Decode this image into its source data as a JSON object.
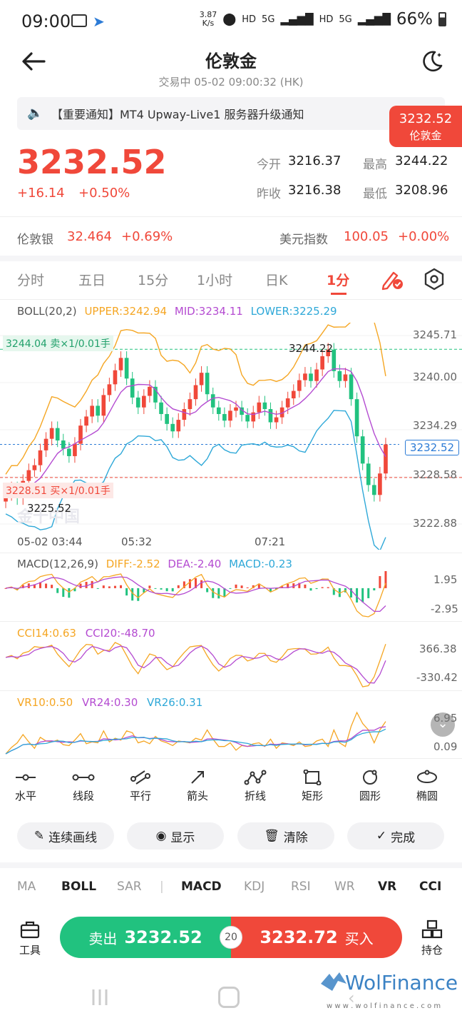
{
  "status": {
    "time": "09:00",
    "speed": "3.87",
    "speed_unit": "K/s",
    "net1": "HD",
    "net2": "5G",
    "net3": "HD",
    "net4": "5G",
    "battery": "66%"
  },
  "header": {
    "title": "伦敦金",
    "subtitle": "交易中  05-02 09:00:32 (HK)"
  },
  "notice": {
    "text": "【重要通知】MT4 Upway-Live1 服务器升级通知"
  },
  "price_tag": {
    "price": "3232.52",
    "label": "伦敦金"
  },
  "quote": {
    "price": "3232.52",
    "change": "+16.14",
    "change_pct": "+0.50%",
    "open_label": "今开",
    "open": "3216.37",
    "high_label": "最高",
    "high": "3244.22",
    "prev_label": "昨收",
    "prev": "3216.38",
    "low_label": "最低",
    "low": "3208.96"
  },
  "related": {
    "silver_label": "伦敦银",
    "silver": "32.464",
    "silver_pct": "+0.69%",
    "dxy_label": "美元指数",
    "dxy": "100.05",
    "dxy_pct": "+0.00%"
  },
  "tabs": [
    "分时",
    "五日",
    "15分",
    "1小时",
    "日K",
    "1分"
  ],
  "active_tab": "1分",
  "boll": {
    "name": "BOLL(20,2)",
    "upper": "UPPER:3242.94",
    "mid": "MID:3234.11",
    "lower": "LOWER:3225.29"
  },
  "main_chart": {
    "axis": [
      "3245.71",
      "3240.00",
      "3234.29",
      "3228.58",
      "3222.88"
    ],
    "current_label": "3232.52",
    "sell_order": "3244.04 卖×1/0.01手",
    "buy_order": "3228.51 买×1/0.01手",
    "max_label": "3244.22",
    "min_label": "3225.52",
    "times": [
      "05-02 03:44",
      "05:32",
      "07:21"
    ],
    "watermark": "金十中国"
  },
  "macd": {
    "name": "MACD(12,26,9)",
    "diff": "DIFF:-2.52",
    "dea": "DEA:-2.40",
    "macd": "MACD:-0.23",
    "axis": [
      "1.95",
      "-2.95"
    ]
  },
  "cci": {
    "c14": "CCI14:0.63",
    "c20": "CCI20:-48.70",
    "axis": [
      "366.38",
      "-330.42"
    ]
  },
  "vr": {
    "v10": "VR10:0.50",
    "v24": "VR24:0.30",
    "v26": "VR26:0.31",
    "axis": [
      "6.95",
      "0.09"
    ]
  },
  "draw_tools": [
    "水平",
    "线段",
    "平行",
    "箭头",
    "折线",
    "矩形",
    "圆形",
    "椭圆"
  ],
  "actions": {
    "continuous": "连续画线",
    "show": "显示",
    "clear": "清除",
    "done": "完成"
  },
  "indicators": [
    "MA",
    "BOLL",
    "SAR",
    "MACD",
    "KDJ",
    "RSI",
    "WR",
    "VR",
    "CCI"
  ],
  "bold_indicators": [
    "BOLL",
    "MACD",
    "VR",
    "CCI"
  ],
  "trade": {
    "tools": "工具",
    "sell_label": "卖出",
    "sell_price": "3232.52",
    "spread": "20",
    "buy_price": "3232.72",
    "buy_label": "买入",
    "positions": "持仓"
  },
  "watermark_brand": "WolFinance",
  "watermark_url": "w w w . w o l f i n a n c e . c o m",
  "colors": {
    "red": "#f0483a",
    "green": "#21c27f",
    "upper": "#f5a623",
    "mid": "#b44bd1",
    "lower": "#2ea8d8"
  },
  "chart_data": {
    "type": "candlestick",
    "ylim": [
      3222.88,
      3245.71
    ],
    "close": [
      3226.5,
      3227.2,
      3226.0,
      3228.1,
      3229.4,
      3230.0,
      3231.8,
      3233.2,
      3234.5,
      3233.0,
      3232.0,
      3231.1,
      3232.6,
      3234.8,
      3235.9,
      3237.2,
      3236.0,
      3238.5,
      3239.8,
      3241.5,
      3243.0,
      3240.5,
      3238.2,
      3237.0,
      3238.4,
      3239.5,
      3237.6,
      3236.2,
      3235.0,
      3234.1,
      3235.5,
      3236.8,
      3238.0,
      3239.7,
      3241.2,
      3238.6,
      3237.0,
      3236.2,
      3235.4,
      3236.6,
      3237.0,
      3236.1,
      3235.3,
      3236.4,
      3237.6,
      3236.8,
      3235.2,
      3235.8,
      3237.0,
      3238.1,
      3239.0,
      3240.3,
      3241.1,
      3240.2,
      3241.6,
      3243.2,
      3244.0,
      3241.4,
      3240.2,
      3241.0,
      3238.0,
      3233.5,
      3230.2,
      3227.6,
      3226.4,
      3229.0,
      3232.52
    ]
  }
}
